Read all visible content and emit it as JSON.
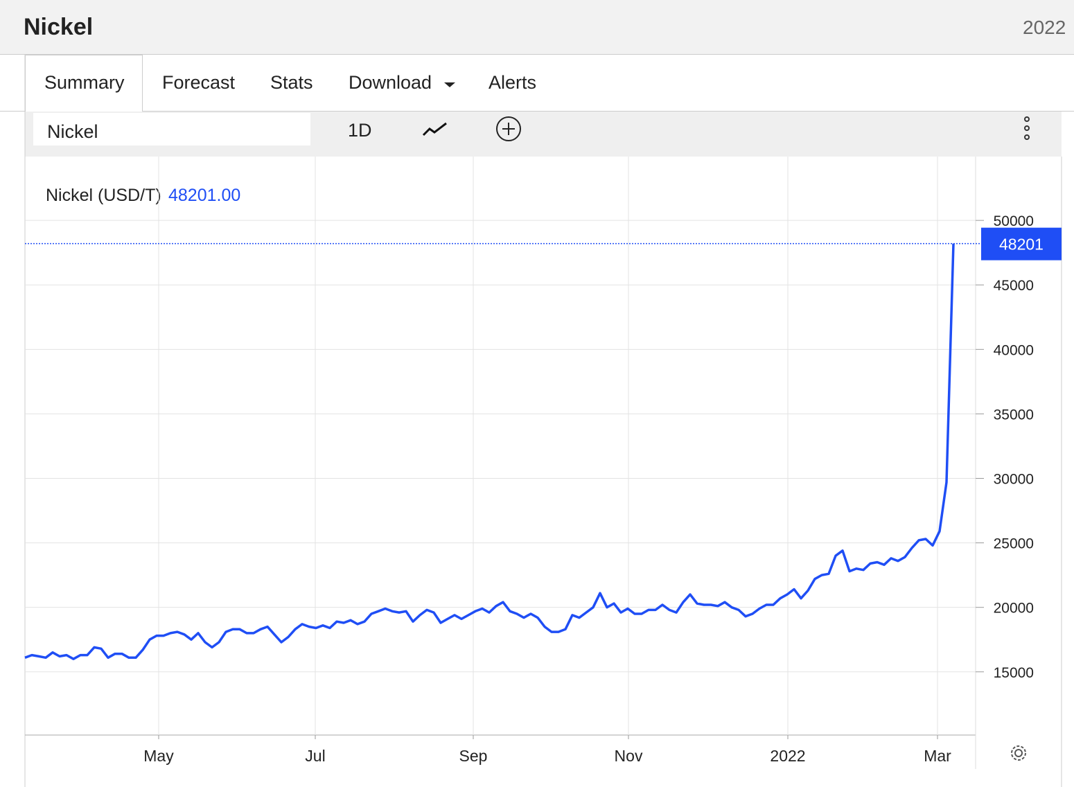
{
  "header": {
    "title": "Nickel",
    "date": "2022"
  },
  "tabs": [
    "Summary",
    "Forecast",
    "Stats",
    "Download",
    "Alerts"
  ],
  "toolbar": {
    "symbol": "Nickel",
    "interval": "1D"
  },
  "chart_data": {
    "type": "line",
    "series": [
      {
        "name": "Nickel (USD/T)",
        "color": "#1f4ef5",
        "last_label": "48201.00",
        "values": [
          16100,
          16300,
          16200,
          16100,
          16500,
          16200,
          16300,
          16000,
          16300,
          16300,
          16900,
          16800,
          16100,
          16400,
          16400,
          16100,
          16100,
          16700,
          17500,
          17800,
          17800,
          18000,
          18100,
          17900,
          17500,
          18000,
          17300,
          16900,
          17300,
          18100,
          18300,
          18300,
          18000,
          18000,
          18300,
          18500,
          17900,
          17300,
          17700,
          18300,
          18700,
          18500,
          18400,
          18600,
          18400,
          18900,
          18800,
          19000,
          18700,
          18900,
          19500,
          19700,
          19900,
          19700,
          19600,
          19700,
          18900,
          19400,
          19800,
          19600,
          18800,
          19100,
          19400,
          19100,
          19400,
          19700,
          19900,
          19600,
          20100,
          20400,
          19700,
          19500,
          19200,
          19500,
          19200,
          18500,
          18100,
          18100,
          18300,
          19400,
          19200,
          19600,
          20000,
          21100,
          20000,
          20300,
          19600,
          19900,
          19500,
          19500,
          19800,
          19800,
          20200,
          19800,
          19600,
          20400,
          21000,
          20300,
          20200,
          20200,
          20100,
          20400,
          20000,
          19800,
          19300,
          19500,
          19900,
          20200,
          20200,
          20700,
          21000,
          21400,
          20700,
          21300,
          22200,
          22500,
          22600,
          24000,
          24400,
          22800,
          23000,
          22900,
          23400,
          23500,
          23300,
          23800,
          23600,
          23900,
          24600,
          25200,
          25300,
          24800,
          25900,
          29700,
          48201
        ]
      }
    ],
    "xlim": [
      0,
      137.2
    ],
    "xticks": [
      {
        "value": 19.3,
        "label": "May"
      },
      {
        "value": 41.9,
        "label": "Jul"
      },
      {
        "value": 64.7,
        "label": "Sep"
      },
      {
        "value": 87.1,
        "label": "Nov"
      },
      {
        "value": 110.1,
        "label": "2022"
      },
      {
        "value": 131.7,
        "label": "Mar"
      }
    ],
    "ylim": [
      10100,
      54950
    ],
    "yticks": [
      15000,
      20000,
      25000,
      30000,
      35000,
      40000,
      45000,
      50000
    ],
    "grid": true
  }
}
